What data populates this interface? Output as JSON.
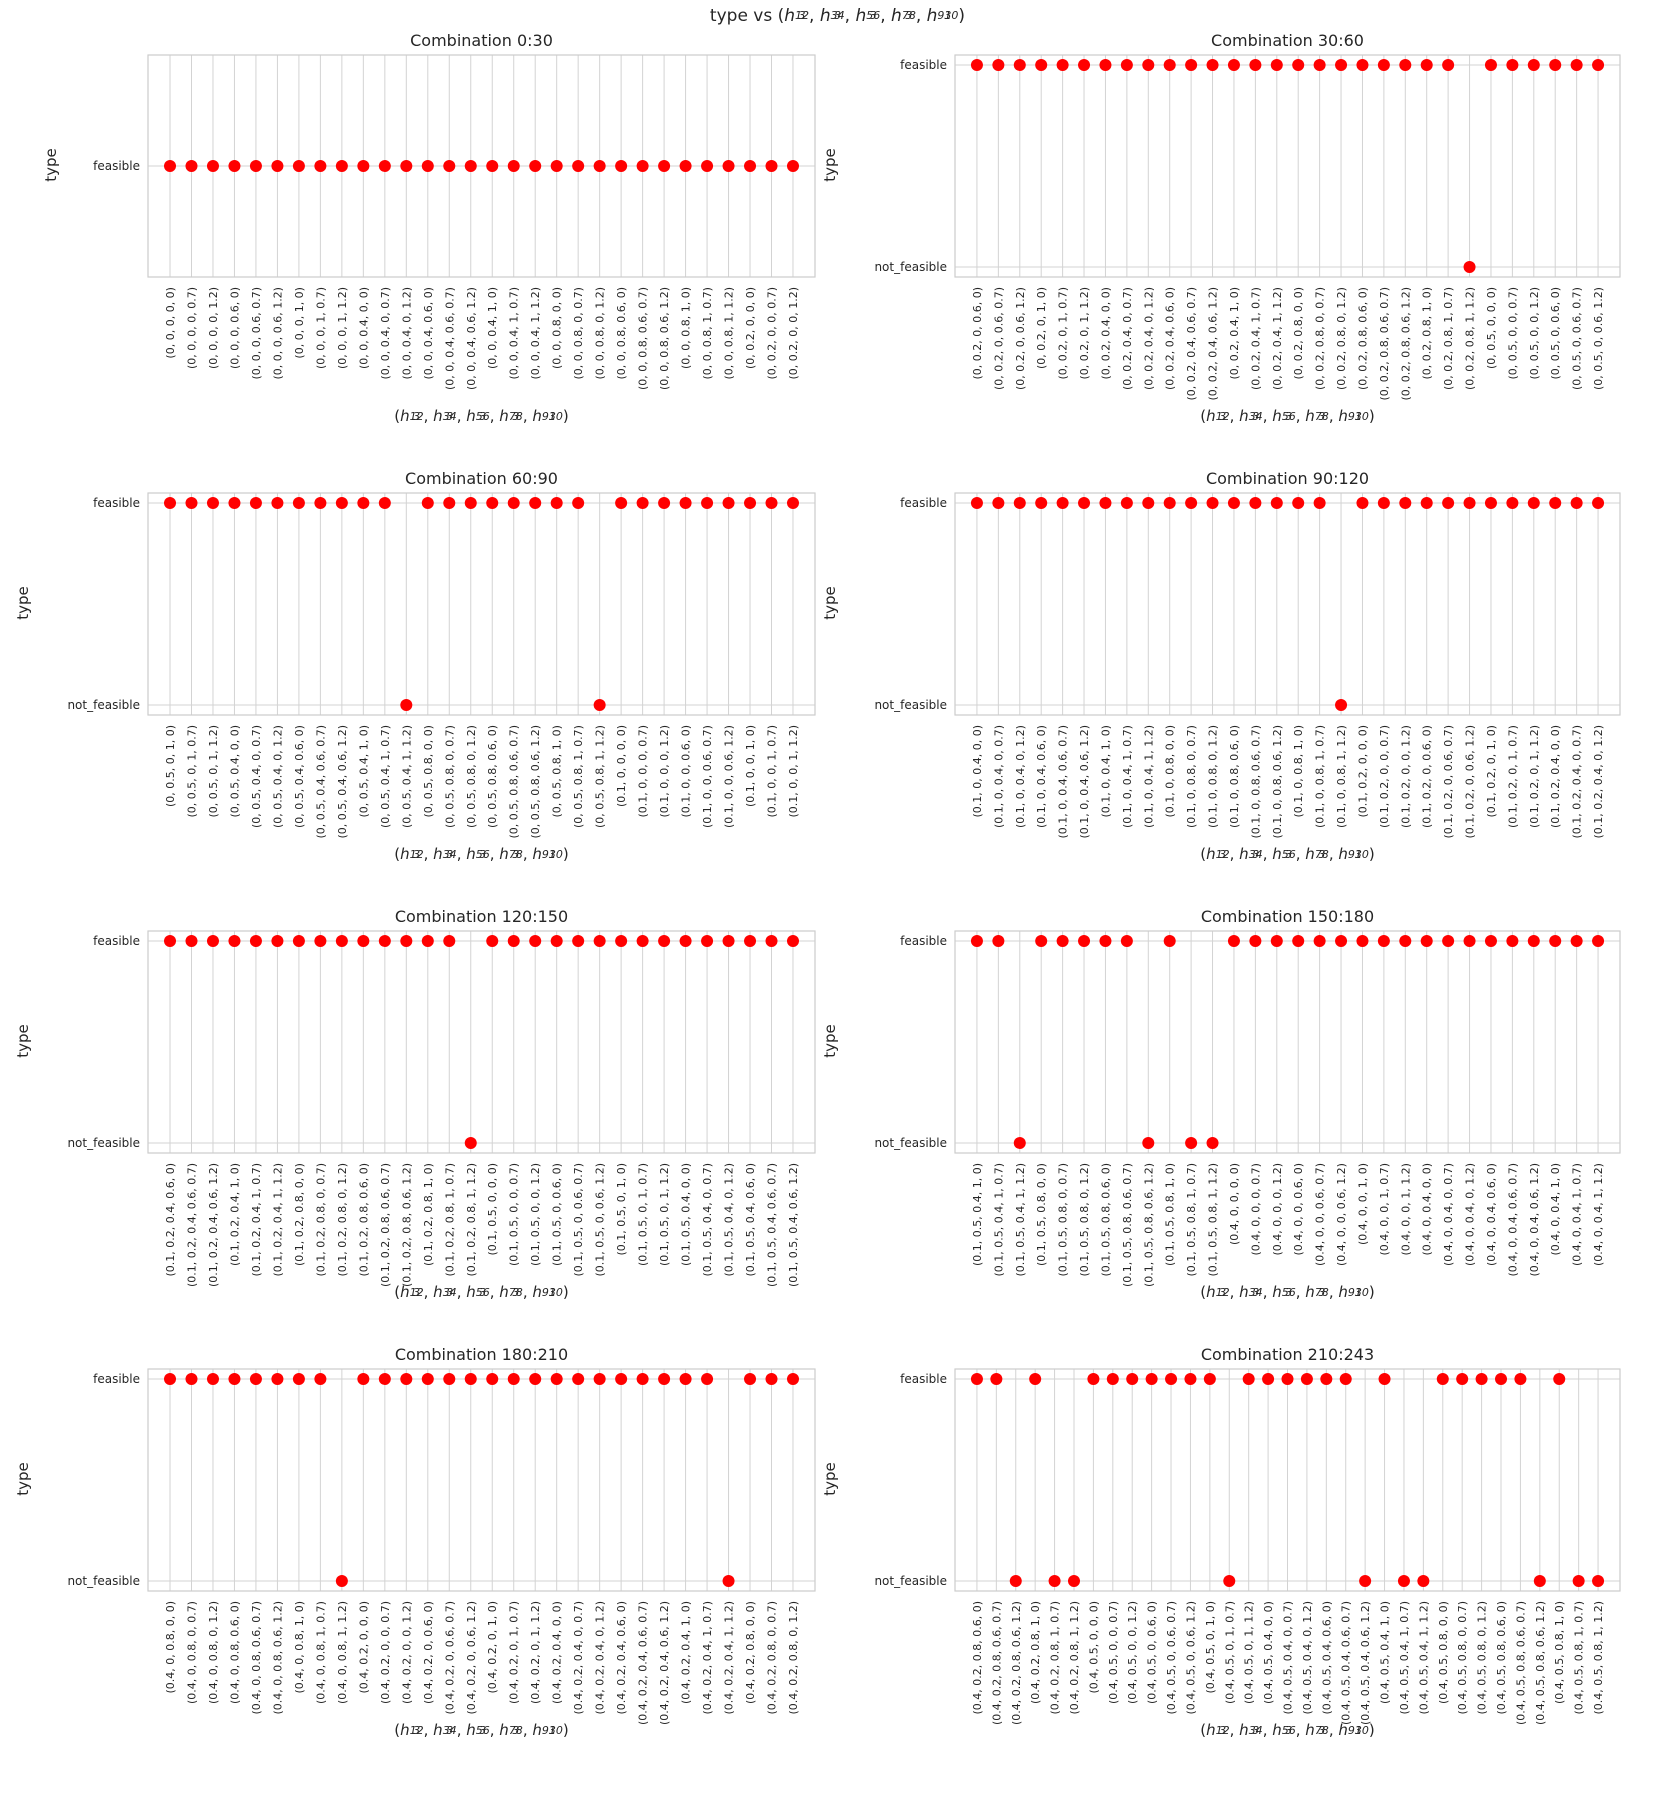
{
  "title_parts": {
    "prefix": "type vs (",
    "suffix": ")"
  },
  "axis_label_parts": {
    "prefix": "(",
    "suffix": ")"
  },
  "h_labels": [
    {
      "base": "h",
      "sub": "3",
      "sup": "12"
    },
    {
      "base": "h",
      "sub": "3",
      "sup": "34"
    },
    {
      "base": "h",
      "sub": "3",
      "sup": "56"
    },
    {
      "base": "h",
      "sub": "3",
      "sup": "78"
    },
    {
      "base": "h",
      "sub": "3",
      "sup": "910"
    }
  ],
  "colors": {
    "marker": "#ff0000",
    "grid": "#d3d3d3",
    "frame": "#cccccc"
  },
  "chart_data": [
    {
      "type": "scatter",
      "title": "Combination 0:30",
      "ylabel": "type",
      "y_categories": [
        "feasible"
      ],
      "x": [
        "(0, 0, 0, 0, 0)",
        "(0, 0, 0, 0, 0.7)",
        "(0, 0, 0, 0, 1.2)",
        "(0, 0, 0, 0.6, 0)",
        "(0, 0, 0, 0.6, 0.7)",
        "(0, 0, 0, 0.6, 1.2)",
        "(0, 0, 0, 1, 0)",
        "(0, 0, 0, 1, 0.7)",
        "(0, 0, 0, 1, 1.2)",
        "(0, 0, 0.4, 0, 0)",
        "(0, 0, 0.4, 0, 0.7)",
        "(0, 0, 0.4, 0, 1.2)",
        "(0, 0, 0.4, 0.6, 0)",
        "(0, 0, 0.4, 0.6, 0.7)",
        "(0, 0, 0.4, 0.6, 1.2)",
        "(0, 0, 0.4, 1, 0)",
        "(0, 0, 0.4, 1, 0.7)",
        "(0, 0, 0.4, 1, 1.2)",
        "(0, 0, 0.8, 0, 0)",
        "(0, 0, 0.8, 0, 0.7)",
        "(0, 0, 0.8, 0, 1.2)",
        "(0, 0, 0.8, 0.6, 0)",
        "(0, 0, 0.8, 0.6, 0.7)",
        "(0, 0, 0.8, 0.6, 1.2)",
        "(0, 0, 0.8, 1, 0)",
        "(0, 0, 0.8, 1, 0.7)",
        "(0, 0, 0.8, 1, 1.2)",
        "(0, 0.2, 0, 0, 0)",
        "(0, 0.2, 0, 0, 0.7)",
        "(0, 0.2, 0, 0, 1.2)"
      ],
      "y": [
        "feasible",
        "feasible",
        "feasible",
        "feasible",
        "feasible",
        "feasible",
        "feasible",
        "feasible",
        "feasible",
        "feasible",
        "feasible",
        "feasible",
        "feasible",
        "feasible",
        "feasible",
        "feasible",
        "feasible",
        "feasible",
        "feasible",
        "feasible",
        "feasible",
        "feasible",
        "feasible",
        "feasible",
        "feasible",
        "feasible",
        "feasible",
        "feasible",
        "feasible",
        "feasible"
      ]
    },
    {
      "type": "scatter",
      "title": "Combination 30:60",
      "ylabel": "type",
      "y_categories": [
        "not_feasible",
        "feasible"
      ],
      "x": [
        "(0, 0.2, 0, 0.6, 0)",
        "(0, 0.2, 0, 0.6, 0.7)",
        "(0, 0.2, 0, 0.6, 1.2)",
        "(0, 0.2, 0, 1, 0)",
        "(0, 0.2, 0, 1, 0.7)",
        "(0, 0.2, 0, 1, 1.2)",
        "(0, 0.2, 0.4, 0, 0)",
        "(0, 0.2, 0.4, 0, 0.7)",
        "(0, 0.2, 0.4, 0, 1.2)",
        "(0, 0.2, 0.4, 0.6, 0)",
        "(0, 0.2, 0.4, 0.6, 0.7)",
        "(0, 0.2, 0.4, 0.6, 1.2)",
        "(0, 0.2, 0.4, 1, 0)",
        "(0, 0.2, 0.4, 1, 0.7)",
        "(0, 0.2, 0.4, 1, 1.2)",
        "(0, 0.2, 0.8, 0, 0)",
        "(0, 0.2, 0.8, 0, 0.7)",
        "(0, 0.2, 0.8, 0, 1.2)",
        "(0, 0.2, 0.8, 0.6, 0)",
        "(0, 0.2, 0.8, 0.6, 0.7)",
        "(0, 0.2, 0.8, 0.6, 1.2)",
        "(0, 0.2, 0.8, 1, 0)",
        "(0, 0.2, 0.8, 1, 0.7)",
        "(0, 0.2, 0.8, 1, 1.2)",
        "(0, 0.5, 0, 0, 0)",
        "(0, 0.5, 0, 0, 0.7)",
        "(0, 0.5, 0, 0, 1.2)",
        "(0, 0.5, 0, 0.6, 0)",
        "(0, 0.5, 0, 0.6, 0.7)",
        "(0, 0.5, 0, 0.6, 1.2)"
      ],
      "y": [
        "feasible",
        "feasible",
        "feasible",
        "feasible",
        "feasible",
        "feasible",
        "feasible",
        "feasible",
        "feasible",
        "feasible",
        "feasible",
        "feasible",
        "feasible",
        "feasible",
        "feasible",
        "feasible",
        "feasible",
        "feasible",
        "feasible",
        "feasible",
        "feasible",
        "feasible",
        "feasible",
        "not_feasible",
        "feasible",
        "feasible",
        "feasible",
        "feasible",
        "feasible",
        "feasible"
      ]
    },
    {
      "type": "scatter",
      "title": "Combination 60:90",
      "ylabel": "type",
      "y_categories": [
        "not_feasible",
        "feasible"
      ],
      "x": [
        "(0, 0.5, 0, 1, 0)",
        "(0, 0.5, 0, 1, 0.7)",
        "(0, 0.5, 0, 1, 1.2)",
        "(0, 0.5, 0.4, 0, 0)",
        "(0, 0.5, 0.4, 0, 0.7)",
        "(0, 0.5, 0.4, 0, 1.2)",
        "(0, 0.5, 0.4, 0.6, 0)",
        "(0, 0.5, 0.4, 0.6, 0.7)",
        "(0, 0.5, 0.4, 0.6, 1.2)",
        "(0, 0.5, 0.4, 1, 0)",
        "(0, 0.5, 0.4, 1, 0.7)",
        "(0, 0.5, 0.4, 1, 1.2)",
        "(0, 0.5, 0.8, 0, 0)",
        "(0, 0.5, 0.8, 0, 0.7)",
        "(0, 0.5, 0.8, 0, 1.2)",
        "(0, 0.5, 0.8, 0.6, 0)",
        "(0, 0.5, 0.8, 0.6, 0.7)",
        "(0, 0.5, 0.8, 0.6, 1.2)",
        "(0, 0.5, 0.8, 1, 0)",
        "(0, 0.5, 0.8, 1, 0.7)",
        "(0, 0.5, 0.8, 1, 1.2)",
        "(0.1, 0, 0, 0, 0)",
        "(0.1, 0, 0, 0, 0.7)",
        "(0.1, 0, 0, 0, 1.2)",
        "(0.1, 0, 0, 0.6, 0)",
        "(0.1, 0, 0, 0.6, 0.7)",
        "(0.1, 0, 0, 0.6, 1.2)",
        "(0.1, 0, 0, 1, 0)",
        "(0.1, 0, 0, 1, 0.7)",
        "(0.1, 0, 0, 1, 1.2)"
      ],
      "y": [
        "feasible",
        "feasible",
        "feasible",
        "feasible",
        "feasible",
        "feasible",
        "feasible",
        "feasible",
        "feasible",
        "feasible",
        "feasible",
        "not_feasible",
        "feasible",
        "feasible",
        "feasible",
        "feasible",
        "feasible",
        "feasible",
        "feasible",
        "feasible",
        "not_feasible",
        "feasible",
        "feasible",
        "feasible",
        "feasible",
        "feasible",
        "feasible",
        "feasible",
        "feasible",
        "feasible"
      ]
    },
    {
      "type": "scatter",
      "title": "Combination 90:120",
      "ylabel": "type",
      "y_categories": [
        "not_feasible",
        "feasible"
      ],
      "x": [
        "(0.1, 0, 0.4, 0, 0)",
        "(0.1, 0, 0.4, 0, 0.7)",
        "(0.1, 0, 0.4, 0, 1.2)",
        "(0.1, 0, 0.4, 0.6, 0)",
        "(0.1, 0, 0.4, 0.6, 0.7)",
        "(0.1, 0, 0.4, 0.6, 1.2)",
        "(0.1, 0, 0.4, 1, 0)",
        "(0.1, 0, 0.4, 1, 0.7)",
        "(0.1, 0, 0.4, 1, 1.2)",
        "(0.1, 0, 0.8, 0, 0)",
        "(0.1, 0, 0.8, 0, 0.7)",
        "(0.1, 0, 0.8, 0, 1.2)",
        "(0.1, 0, 0.8, 0.6, 0)",
        "(0.1, 0, 0.8, 0.6, 0.7)",
        "(0.1, 0, 0.8, 0.6, 1.2)",
        "(0.1, 0, 0.8, 1, 0)",
        "(0.1, 0, 0.8, 1, 0.7)",
        "(0.1, 0, 0.8, 1, 1.2)",
        "(0.1, 0.2, 0, 0, 0)",
        "(0.1, 0.2, 0, 0, 0.7)",
        "(0.1, 0.2, 0, 0, 1.2)",
        "(0.1, 0.2, 0, 0.6, 0)",
        "(0.1, 0.2, 0, 0.6, 0.7)",
        "(0.1, 0.2, 0, 0.6, 1.2)",
        "(0.1, 0.2, 0, 1, 0)",
        "(0.1, 0.2, 0, 1, 0.7)",
        "(0.1, 0.2, 0, 1, 1.2)",
        "(0.1, 0.2, 0.4, 0, 0)",
        "(0.1, 0.2, 0.4, 0, 0.7)",
        "(0.1, 0.2, 0.4, 0, 1.2)"
      ],
      "y": [
        "feasible",
        "feasible",
        "feasible",
        "feasible",
        "feasible",
        "feasible",
        "feasible",
        "feasible",
        "feasible",
        "feasible",
        "feasible",
        "feasible",
        "feasible",
        "feasible",
        "feasible",
        "feasible",
        "feasible",
        "not_feasible",
        "feasible",
        "feasible",
        "feasible",
        "feasible",
        "feasible",
        "feasible",
        "feasible",
        "feasible",
        "feasible",
        "feasible",
        "feasible",
        "feasible"
      ]
    },
    {
      "type": "scatter",
      "title": "Combination 120:150",
      "ylabel": "type",
      "y_categories": [
        "not_feasible",
        "feasible"
      ],
      "x": [
        "(0.1, 0.2, 0.4, 0.6, 0)",
        "(0.1, 0.2, 0.4, 0.6, 0.7)",
        "(0.1, 0.2, 0.4, 0.6, 1.2)",
        "(0.1, 0.2, 0.4, 1, 0)",
        "(0.1, 0.2, 0.4, 1, 0.7)",
        "(0.1, 0.2, 0.4, 1, 1.2)",
        "(0.1, 0.2, 0.8, 0, 0)",
        "(0.1, 0.2, 0.8, 0, 0.7)",
        "(0.1, 0.2, 0.8, 0, 1.2)",
        "(0.1, 0.2, 0.8, 0.6, 0)",
        "(0.1, 0.2, 0.8, 0.6, 0.7)",
        "(0.1, 0.2, 0.8, 0.6, 1.2)",
        "(0.1, 0.2, 0.8, 1, 0)",
        "(0.1, 0.2, 0.8, 1, 0.7)",
        "(0.1, 0.2, 0.8, 1, 1.2)",
        "(0.1, 0.5, 0, 0, 0)",
        "(0.1, 0.5, 0, 0, 0.7)",
        "(0.1, 0.5, 0, 0, 1.2)",
        "(0.1, 0.5, 0, 0.6, 0)",
        "(0.1, 0.5, 0, 0.6, 0.7)",
        "(0.1, 0.5, 0, 0.6, 1.2)",
        "(0.1, 0.5, 0, 1, 0)",
        "(0.1, 0.5, 0, 1, 0.7)",
        "(0.1, 0.5, 0, 1, 1.2)",
        "(0.1, 0.5, 0.4, 0, 0)",
        "(0.1, 0.5, 0.4, 0, 0.7)",
        "(0.1, 0.5, 0.4, 0, 1.2)",
        "(0.1, 0.5, 0.4, 0.6, 0)",
        "(0.1, 0.5, 0.4, 0.6, 0.7)",
        "(0.1, 0.5, 0.4, 0.6, 1.2)"
      ],
      "y": [
        "feasible",
        "feasible",
        "feasible",
        "feasible",
        "feasible",
        "feasible",
        "feasible",
        "feasible",
        "feasible",
        "feasible",
        "feasible",
        "feasible",
        "feasible",
        "feasible",
        "not_feasible",
        "feasible",
        "feasible",
        "feasible",
        "feasible",
        "feasible",
        "feasible",
        "feasible",
        "feasible",
        "feasible",
        "feasible",
        "feasible",
        "feasible",
        "feasible",
        "feasible",
        "feasible"
      ]
    },
    {
      "type": "scatter",
      "title": "Combination 150:180",
      "ylabel": "type",
      "y_categories": [
        "not_feasible",
        "feasible"
      ],
      "x": [
        "(0.1, 0.5, 0.4, 1, 0)",
        "(0.1, 0.5, 0.4, 1, 0.7)",
        "(0.1, 0.5, 0.4, 1, 1.2)",
        "(0.1, 0.5, 0.8, 0, 0)",
        "(0.1, 0.5, 0.8, 0, 0.7)",
        "(0.1, 0.5, 0.8, 0, 1.2)",
        "(0.1, 0.5, 0.8, 0.6, 0)",
        "(0.1, 0.5, 0.8, 0.6, 0.7)",
        "(0.1, 0.5, 0.8, 0.6, 1.2)",
        "(0.1, 0.5, 0.8, 1, 0)",
        "(0.1, 0.5, 0.8, 1, 0.7)",
        "(0.1, 0.5, 0.8, 1, 1.2)",
        "(0.4, 0, 0, 0, 0)",
        "(0.4, 0, 0, 0, 0.7)",
        "(0.4, 0, 0, 0, 1.2)",
        "(0.4, 0, 0, 0.6, 0)",
        "(0.4, 0, 0, 0.6, 0.7)",
        "(0.4, 0, 0, 0.6, 1.2)",
        "(0.4, 0, 0, 1, 0)",
        "(0.4, 0, 0, 1, 0.7)",
        "(0.4, 0, 0, 1, 1.2)",
        "(0.4, 0, 0.4, 0, 0)",
        "(0.4, 0, 0.4, 0, 0.7)",
        "(0.4, 0, 0.4, 0, 1.2)",
        "(0.4, 0, 0.4, 0.6, 0)",
        "(0.4, 0, 0.4, 0.6, 0.7)",
        "(0.4, 0, 0.4, 0.6, 1.2)",
        "(0.4, 0, 0.4, 1, 0)",
        "(0.4, 0, 0.4, 1, 0.7)",
        "(0.4, 0, 0.4, 1, 1.2)"
      ],
      "y": [
        "feasible",
        "feasible",
        "not_feasible",
        "feasible",
        "feasible",
        "feasible",
        "feasible",
        "feasible",
        "not_feasible",
        "feasible",
        "not_feasible",
        "not_feasible",
        "feasible",
        "feasible",
        "feasible",
        "feasible",
        "feasible",
        "feasible",
        "feasible",
        "feasible",
        "feasible",
        "feasible",
        "feasible",
        "feasible",
        "feasible",
        "feasible",
        "feasible",
        "feasible",
        "feasible",
        "feasible"
      ]
    },
    {
      "type": "scatter",
      "title": "Combination 180:210",
      "ylabel": "type",
      "y_categories": [
        "not_feasible",
        "feasible"
      ],
      "x": [
        "(0.4, 0, 0.8, 0, 0)",
        "(0.4, 0, 0.8, 0, 0.7)",
        "(0.4, 0, 0.8, 0, 1.2)",
        "(0.4, 0, 0.8, 0.6, 0)",
        "(0.4, 0, 0.8, 0.6, 0.7)",
        "(0.4, 0, 0.8, 0.6, 1.2)",
        "(0.4, 0, 0.8, 1, 0)",
        "(0.4, 0, 0.8, 1, 0.7)",
        "(0.4, 0, 0.8, 1, 1.2)",
        "(0.4, 0.2, 0, 0, 0)",
        "(0.4, 0.2, 0, 0, 0.7)",
        "(0.4, 0.2, 0, 0, 1.2)",
        "(0.4, 0.2, 0, 0.6, 0)",
        "(0.4, 0.2, 0, 0.6, 0.7)",
        "(0.4, 0.2, 0, 0.6, 1.2)",
        "(0.4, 0.2, 0, 1, 0)",
        "(0.4, 0.2, 0, 1, 0.7)",
        "(0.4, 0.2, 0, 1, 1.2)",
        "(0.4, 0.2, 0.4, 0, 0)",
        "(0.4, 0.2, 0.4, 0, 0.7)",
        "(0.4, 0.2, 0.4, 0, 1.2)",
        "(0.4, 0.2, 0.4, 0.6, 0)",
        "(0.4, 0.2, 0.4, 0.6, 0.7)",
        "(0.4, 0.2, 0.4, 0.6, 1.2)",
        "(0.4, 0.2, 0.4, 1, 0)",
        "(0.4, 0.2, 0.4, 1, 0.7)",
        "(0.4, 0.2, 0.4, 1, 1.2)",
        "(0.4, 0.2, 0.8, 0, 0)",
        "(0.4, 0.2, 0.8, 0, 0.7)",
        "(0.4, 0.2, 0.8, 0, 1.2)"
      ],
      "y": [
        "feasible",
        "feasible",
        "feasible",
        "feasible",
        "feasible",
        "feasible",
        "feasible",
        "feasible",
        "not_feasible",
        "feasible",
        "feasible",
        "feasible",
        "feasible",
        "feasible",
        "feasible",
        "feasible",
        "feasible",
        "feasible",
        "feasible",
        "feasible",
        "feasible",
        "feasible",
        "feasible",
        "feasible",
        "feasible",
        "feasible",
        "not_feasible",
        "feasible",
        "feasible",
        "feasible"
      ]
    },
    {
      "type": "scatter",
      "title": "Combination 210:243",
      "ylabel": "type",
      "y_categories": [
        "not_feasible",
        "feasible"
      ],
      "x": [
        "(0.4, 0.2, 0.8, 0.6, 0)",
        "(0.4, 0.2, 0.8, 0.6, 0.7)",
        "(0.4, 0.2, 0.8, 0.6, 1.2)",
        "(0.4, 0.2, 0.8, 1, 0)",
        "(0.4, 0.2, 0.8, 1, 0.7)",
        "(0.4, 0.2, 0.8, 1, 1.2)",
        "(0.4, 0.5, 0, 0, 0)",
        "(0.4, 0.5, 0, 0, 0.7)",
        "(0.4, 0.5, 0, 0, 1.2)",
        "(0.4, 0.5, 0, 0.6, 0)",
        "(0.4, 0.5, 0, 0.6, 0.7)",
        "(0.4, 0.5, 0, 0.6, 1.2)",
        "(0.4, 0.5, 0, 1, 0)",
        "(0.4, 0.5, 0, 1, 0.7)",
        "(0.4, 0.5, 0, 1, 1.2)",
        "(0.4, 0.5, 0.4, 0, 0)",
        "(0.4, 0.5, 0.4, 0, 0.7)",
        "(0.4, 0.5, 0.4, 0, 1.2)",
        "(0.4, 0.5, 0.4, 0.6, 0)",
        "(0.4, 0.5, 0.4, 0.6, 0.7)",
        "(0.4, 0.5, 0.4, 0.6, 1.2)",
        "(0.4, 0.5, 0.4, 1, 0)",
        "(0.4, 0.5, 0.4, 1, 0.7)",
        "(0.4, 0.5, 0.4, 1, 1.2)",
        "(0.4, 0.5, 0.8, 0, 0)",
        "(0.4, 0.5, 0.8, 0, 0.7)",
        "(0.4, 0.5, 0.8, 0, 1.2)",
        "(0.4, 0.5, 0.8, 0.6, 0)",
        "(0.4, 0.5, 0.8, 0.6, 0.7)",
        "(0.4, 0.5, 0.8, 0.6, 1.2)",
        "(0.4, 0.5, 0.8, 1, 0)",
        "(0.4, 0.5, 0.8, 1, 0.7)",
        "(0.4, 0.5, 0.8, 1, 1.2)"
      ],
      "y": [
        "feasible",
        "feasible",
        "not_feasible",
        "feasible",
        "not_feasible",
        "not_feasible",
        "feasible",
        "feasible",
        "feasible",
        "feasible",
        "feasible",
        "feasible",
        "feasible",
        "not_feasible",
        "feasible",
        "feasible",
        "feasible",
        "feasible",
        "feasible",
        "feasible",
        "not_feasible",
        "feasible",
        "not_feasible",
        "not_feasible",
        "feasible",
        "feasible",
        "feasible",
        "feasible",
        "feasible",
        "not_feasible",
        "feasible",
        "not_feasible",
        "not_feasible"
      ]
    }
  ]
}
